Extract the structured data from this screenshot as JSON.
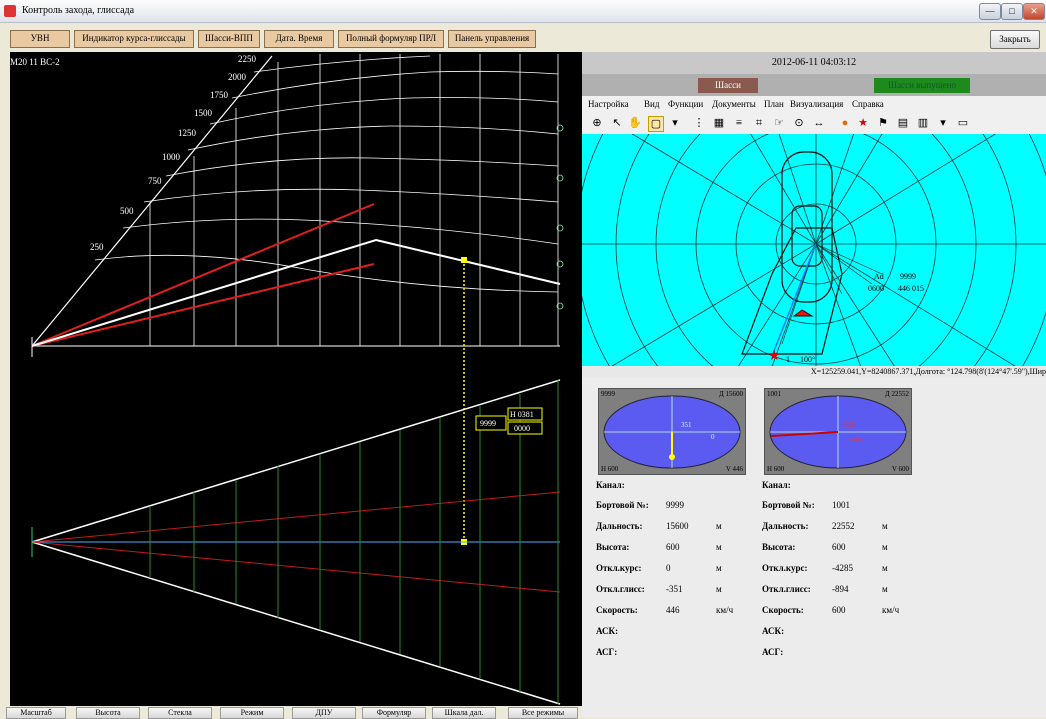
{
  "window": {
    "title": "Контроль захода, глиссада",
    "minimize": "—",
    "maximize": "□",
    "close": "✕"
  },
  "toolbar": {
    "buttons": [
      "УВН",
      "Индикатор курса-глиссады",
      "Шасси-ВПП",
      "Дата. Время",
      "Полный формуляр ПРЛ",
      "Панель управления"
    ],
    "close_label": "Закрыть"
  },
  "left_panel": {
    "track_id": "M20 11 ВС-2",
    "range_labels": [
      "2250",
      "2000",
      "1750",
      "1500",
      "1250",
      "1000",
      "750",
      "500",
      "250"
    ],
    "target_label": "9999",
    "target_box_h": "Н 0381",
    "target_box_v": "0000"
  },
  "bottom_buttons": [
    "Масштаб",
    "Высота",
    "Стекла",
    "Режим",
    "ДПУ",
    "Формуляр",
    "Шкала дал.",
    "Все режимы"
  ],
  "right_panel": {
    "datetime": "2012-06-11 04:03:12",
    "indicator_left": "Шасси",
    "indicator_right": "Шасси выпущено",
    "menu": [
      "Настройка",
      "Вид",
      "Функции",
      "Документы",
      "План",
      "Визуализация",
      "Справка"
    ],
    "radar_labels": {
      "target_a1": "Ad",
      "target_a2": "9999",
      "target_b1": "0600",
      "target_b2": "446 015",
      "bottom_target": "1",
      "bottom_value": "100°"
    },
    "coords": "X=125259.041,Y=8240867.371,Долгота: °124.798(8'(124°47'.59\"),Шир"
  },
  "aircraft": [
    {
      "ind_tl": "9999",
      "ind_tr": "Д 15600",
      "ind_bl": "Н 600",
      "ind_br": "V 446",
      "mid_a": "351",
      "mid_b": "0",
      "channel_label": "Канал:",
      "channel_value": "",
      "board_label": "Бортовой №:",
      "board_value": "9999",
      "range_label": "Дальность:",
      "range_value": "15600",
      "range_unit": "м",
      "alt_label": "Высота:",
      "alt_value": "600",
      "alt_unit": "м",
      "course_label": "Откл.курс:",
      "course_value": "0",
      "course_unit": "м",
      "glide_label": "Откл.глисс:",
      "glide_value": "-351",
      "glide_unit": "м",
      "speed_label": "Скорость:",
      "speed_value": "446",
      "speed_unit": "км/ч",
      "ask_label": "АСК:",
      "asg_label": "АСГ:"
    },
    {
      "ind_tl": "1001",
      "ind_tr": "Д 22552",
      "ind_bl": "Н 600",
      "ind_br": "V 600",
      "mid_a": "894",
      "mid_b": "4285",
      "channel_label": "Канал:",
      "channel_value": "",
      "board_label": "Бортовой №:",
      "board_value": "1001",
      "range_label": "Дальность:",
      "range_value": "22552",
      "range_unit": "м",
      "alt_label": "Высота:",
      "alt_value": "600",
      "alt_unit": "м",
      "course_label": "Откл.курс:",
      "course_value": "-4285",
      "course_unit": "м",
      "glide_label": "Откл.глисс:",
      "glide_value": "-894",
      "glide_unit": "м",
      "speed_label": "Скорость:",
      "speed_value": "600",
      "speed_unit": "км/ч",
      "ask_label": "АСК:",
      "asg_label": "АСГ:"
    }
  ]
}
